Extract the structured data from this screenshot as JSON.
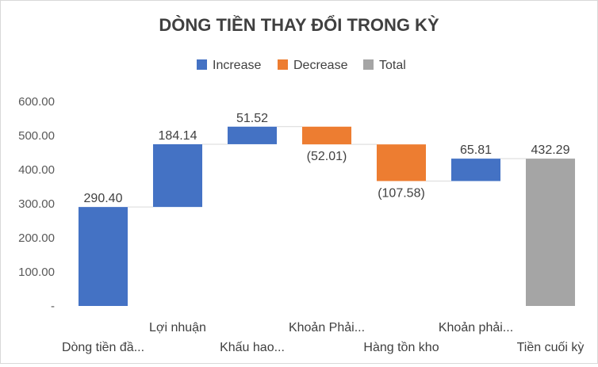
{
  "chart_data": {
    "type": "waterfall",
    "title": "DÒNG TIỀN THAY ĐỔI TRONG KỲ",
    "legend": {
      "position": "top",
      "entries": [
        {
          "name": "Increase",
          "color": "#4472C4"
        },
        {
          "name": "Decrease",
          "color": "#ED7D31"
        },
        {
          "name": "Total",
          "color": "#A5A5A5"
        }
      ]
    },
    "categories": [
      "Dòng tiền đầ...",
      "Lợi nhuận",
      "Khấu hao...",
      "Khoản Phải...",
      "Hàng tồn kho",
      "Khoản phải...",
      "Tiền cuối kỳ"
    ],
    "values": [
      290.4,
      184.14,
      51.52,
      -52.01,
      -107.58,
      65.81,
      432.29
    ],
    "kinds": [
      "increase",
      "increase",
      "increase",
      "decrease",
      "decrease",
      "increase",
      "total"
    ],
    "data_labels": [
      "290.40",
      "184.14",
      "51.52",
      "(52.01)",
      "(107.58)",
      "65.81",
      "432.29"
    ],
    "ylim": [
      0,
      600
    ],
    "yticks": [
      0,
      100,
      200,
      300,
      400,
      500,
      600
    ],
    "ytick_labels": [
      "-",
      "100.00",
      "200.00",
      "300.00",
      "400.00",
      "500.00",
      "600.00"
    ],
    "grid": false,
    "connectors": true,
    "xlabel": "",
    "ylabel": ""
  }
}
